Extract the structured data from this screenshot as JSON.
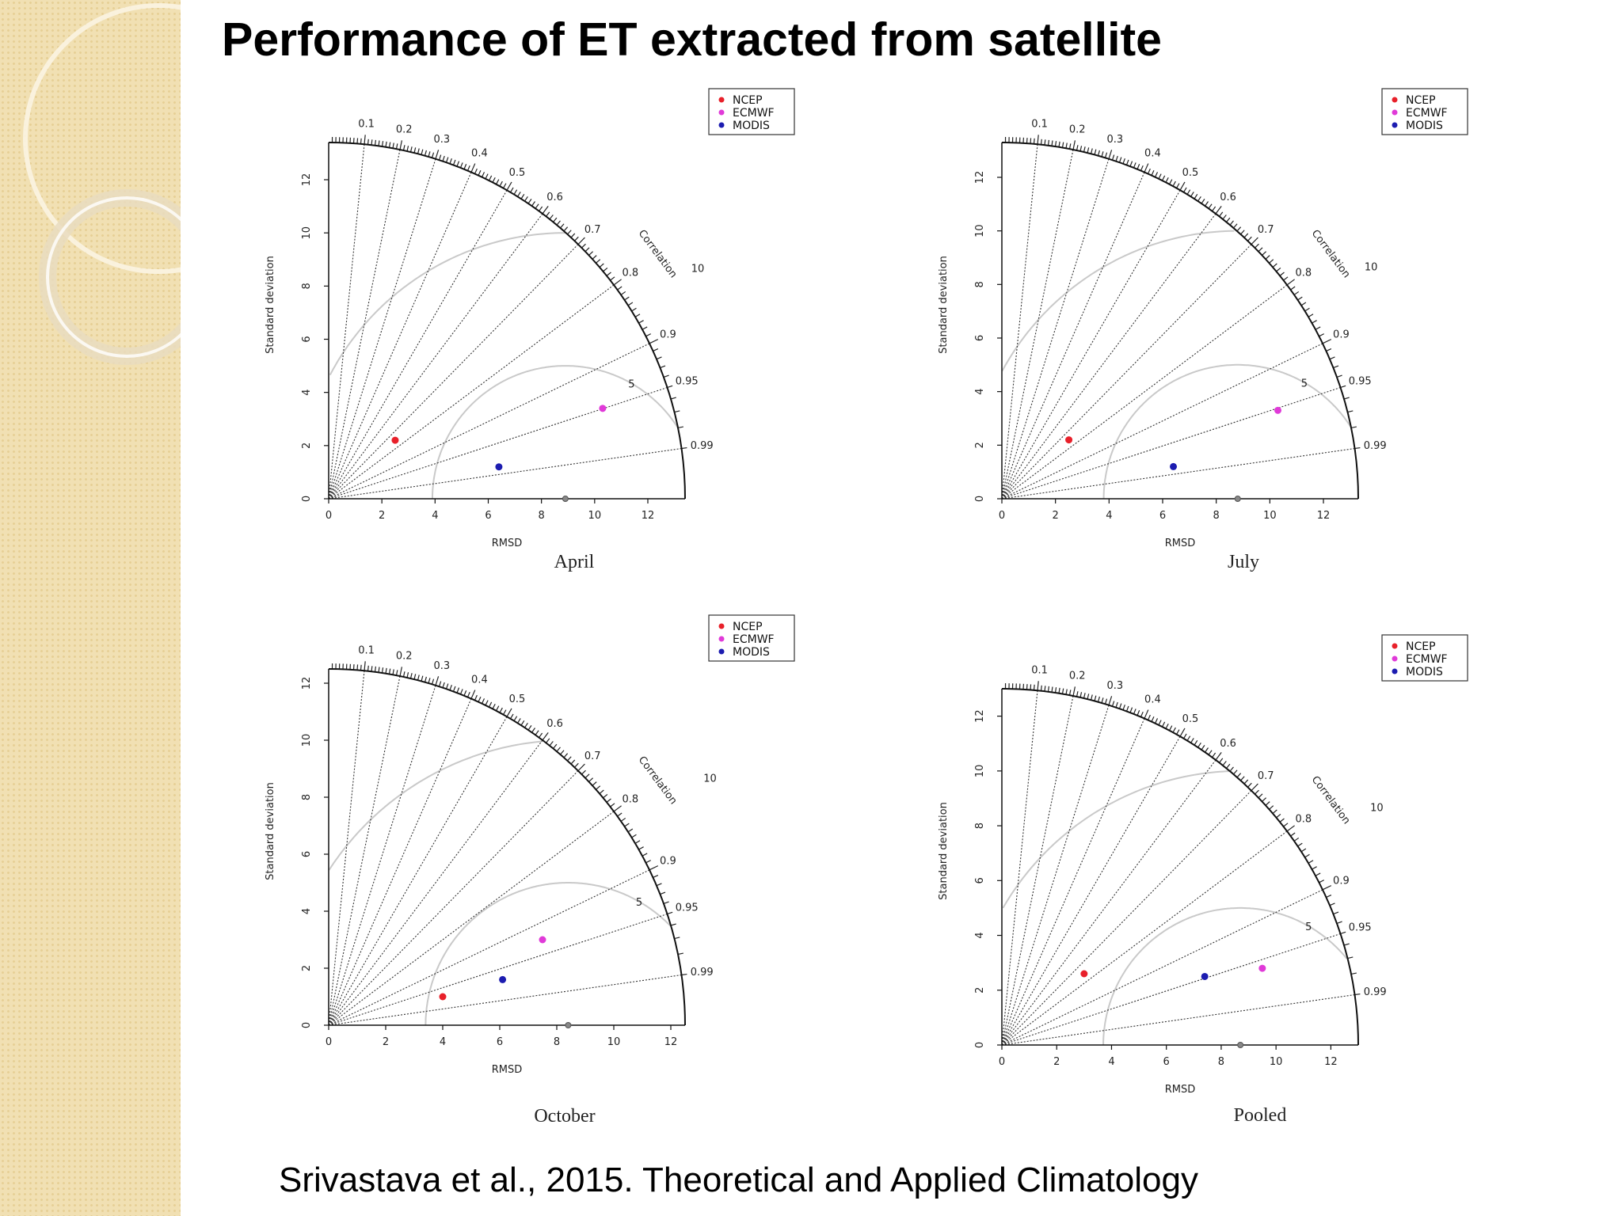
{
  "slide": {
    "title": "Performance of ET extracted from satellite",
    "citation": "Srivastava et al., 2015. Theoretical and Applied Climatology"
  },
  "colors": {
    "NCEP": "#e8202a",
    "ECMWF": "#e03ad8",
    "MODIS": "#1c1cb0",
    "sidebar": "#f1e0b3"
  },
  "chart_data": [
    {
      "type": "taylor-diagram",
      "caption": "April",
      "xlabel": "RMSD",
      "ylabel": "Standard deviation",
      "arc_label": "Correlation",
      "sd_max": 13.4,
      "ref_sd": 8.9,
      "xticks": [
        0,
        2,
        4,
        6,
        8,
        10,
        12
      ],
      "yticks": [
        0,
        2,
        4,
        6,
        8,
        10,
        12
      ],
      "correlation_ticks": [
        "0.1",
        "0.2",
        "0.3",
        "0.4",
        "0.5",
        "0.6",
        "0.7",
        "0.8",
        "0.9",
        "0.95",
        "0.99"
      ],
      "rmsd_contours": [
        5,
        10
      ],
      "legend": [
        "NCEP",
        "ECMWF",
        "MODIS"
      ],
      "legend_position": "top-right",
      "points": [
        {
          "name": "NCEP",
          "x": 2.5,
          "y": 2.2
        },
        {
          "name": "ECMWF",
          "x": 10.3,
          "y": 3.4
        },
        {
          "name": "MODIS",
          "x": 6.4,
          "y": 1.2
        }
      ]
    },
    {
      "type": "taylor-diagram",
      "caption": "July",
      "xlabel": "RMSD",
      "ylabel": "Standard deviation",
      "arc_label": "Correlation",
      "sd_max": 13.3,
      "ref_sd": 8.8,
      "xticks": [
        0,
        2,
        4,
        6,
        8,
        10,
        12
      ],
      "yticks": [
        0,
        2,
        4,
        6,
        8,
        10,
        12
      ],
      "correlation_ticks": [
        "0.1",
        "0.2",
        "0.3",
        "0.4",
        "0.5",
        "0.6",
        "0.7",
        "0.8",
        "0.9",
        "0.95",
        "0.99"
      ],
      "rmsd_contours": [
        5,
        10
      ],
      "legend": [
        "NCEP",
        "ECMWF",
        "MODIS"
      ],
      "legend_position": "top-right",
      "points": [
        {
          "name": "NCEP",
          "x": 2.5,
          "y": 2.2
        },
        {
          "name": "ECMWF",
          "x": 10.3,
          "y": 3.3
        },
        {
          "name": "MODIS",
          "x": 6.4,
          "y": 1.2
        }
      ]
    },
    {
      "type": "taylor-diagram",
      "caption": "October",
      "xlabel": "RMSD",
      "ylabel": "Standard deviation",
      "arc_label": "Correlation",
      "sd_max": 12.5,
      "ref_sd": 8.4,
      "xticks": [
        0,
        2,
        4,
        6,
        8,
        10,
        12
      ],
      "yticks": [
        0,
        2,
        4,
        6,
        8,
        10,
        12
      ],
      "correlation_ticks": [
        "0.1",
        "0.2",
        "0.3",
        "0.4",
        "0.5",
        "0.6",
        "0.7",
        "0.8",
        "0.9",
        "0.95",
        "0.99"
      ],
      "rmsd_contours": [
        5,
        10
      ],
      "legend": [
        "NCEP",
        "ECMWF",
        "MODIS"
      ],
      "legend_position": "top-right",
      "points": [
        {
          "name": "NCEP",
          "x": 4.0,
          "y": 1.0
        },
        {
          "name": "ECMWF",
          "x": 7.5,
          "y": 3.0
        },
        {
          "name": "MODIS",
          "x": 6.1,
          "y": 1.6
        }
      ]
    },
    {
      "type": "taylor-diagram",
      "caption": "Pooled",
      "xlabel": "RMSD",
      "ylabel": "Standard deviation",
      "arc_label": "Correlation",
      "sd_max": 13.0,
      "ref_sd": 8.7,
      "xticks": [
        0,
        2,
        4,
        6,
        8,
        10,
        12
      ],
      "yticks": [
        0,
        2,
        4,
        6,
        8,
        10,
        12
      ],
      "correlation_ticks": [
        "0.1",
        "0.2",
        "0.3",
        "0.4",
        "0.5",
        "0.6",
        "0.7",
        "0.8",
        "0.9",
        "0.95",
        "0.99"
      ],
      "rmsd_contours": [
        5,
        10
      ],
      "legend": [
        "NCEP",
        "ECMWF",
        "MODIS"
      ],
      "legend_position": "top-right",
      "points": [
        {
          "name": "NCEP",
          "x": 3.0,
          "y": 2.6
        },
        {
          "name": "ECMWF",
          "x": 9.5,
          "y": 2.8
        },
        {
          "name": "MODIS",
          "x": 7.4,
          "y": 2.5
        }
      ]
    }
  ]
}
